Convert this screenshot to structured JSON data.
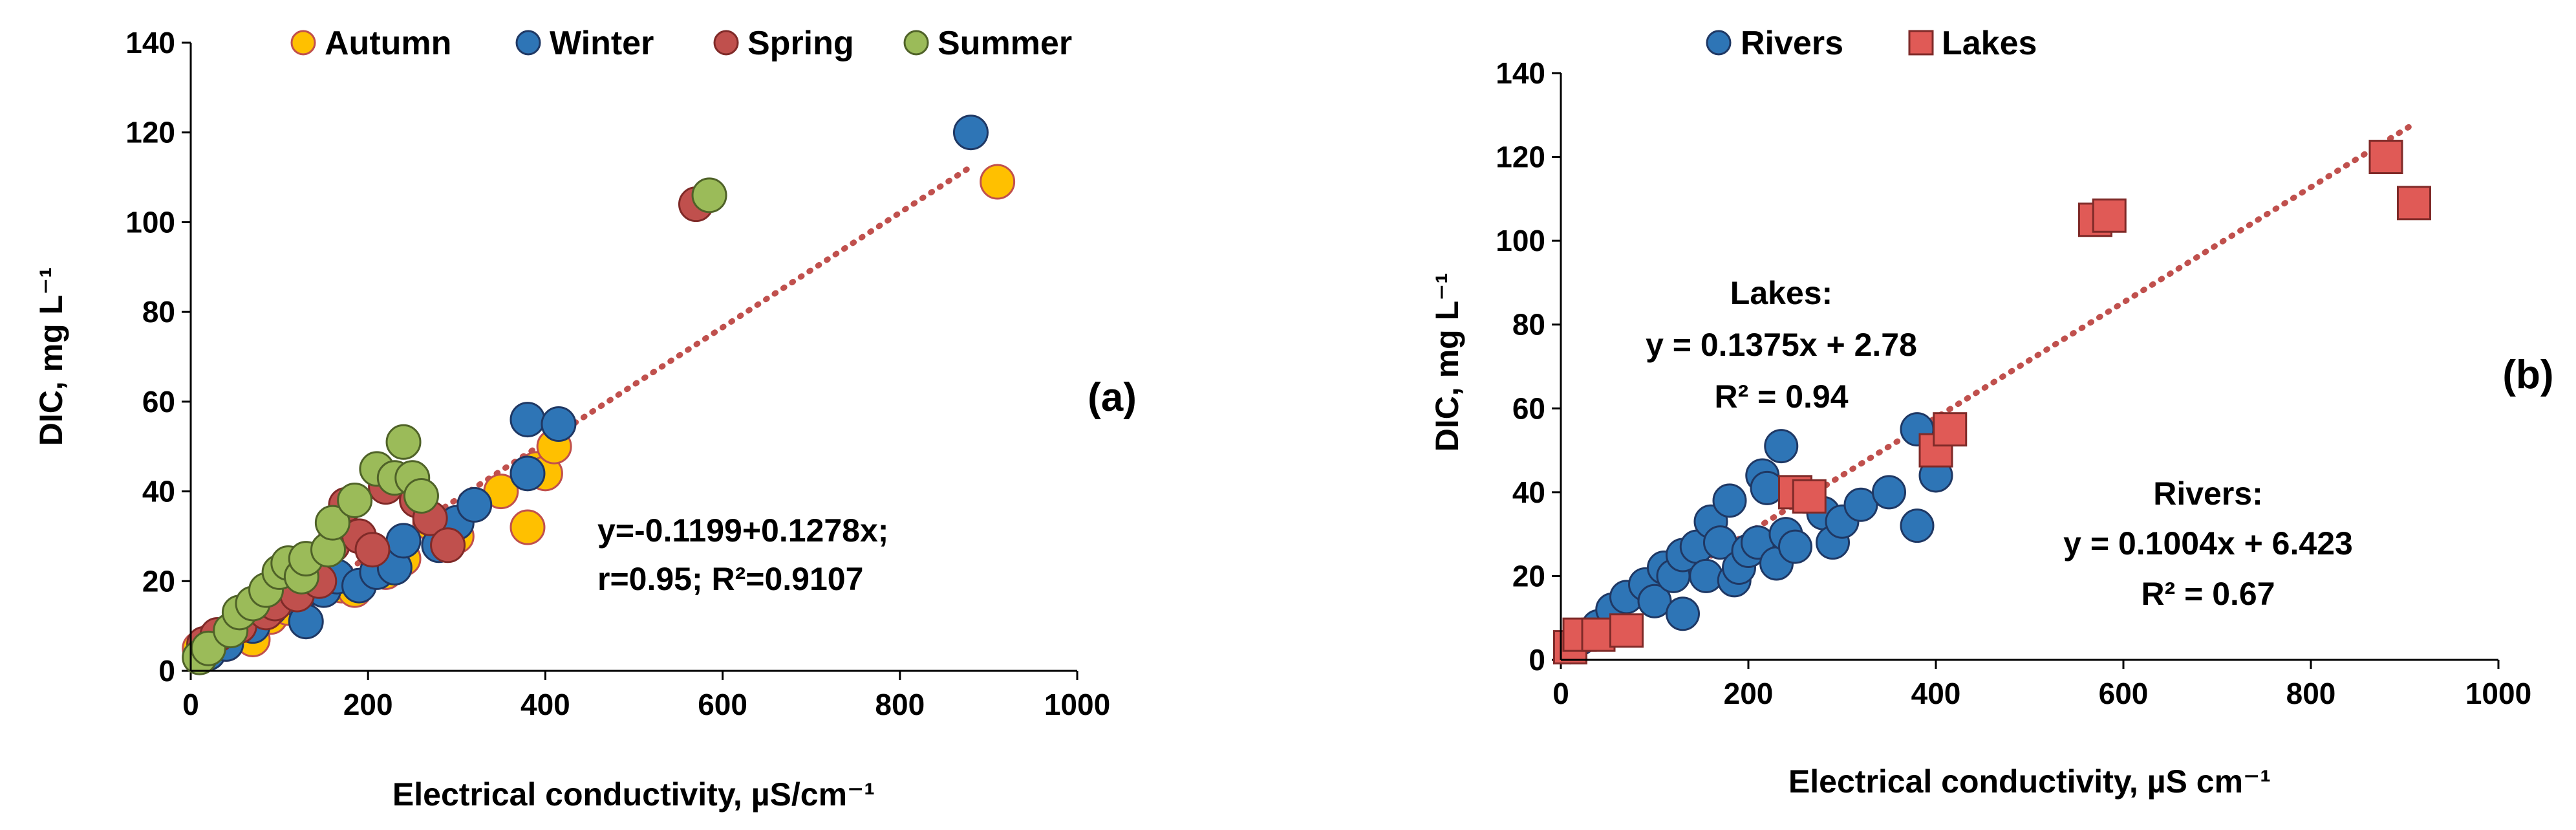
{
  "chart_data": [
    {
      "panel_label": "(a)",
      "type": "scatter",
      "xlabel": "Electrical conductivity, µS/cm⁻¹",
      "ylabel": "DIC, mg L⁻¹",
      "xlim": [
        0,
        1000
      ],
      "ylim": [
        0,
        140
      ],
      "xticks": [
        0,
        200,
        400,
        600,
        800,
        1000
      ],
      "yticks": [
        0,
        20,
        40,
        60,
        80,
        100,
        120,
        140
      ],
      "legend_position": "top",
      "series": [
        {
          "name": "Autumn",
          "marker": "circle",
          "color": "#FFC000",
          "edge": "#C0504D",
          "points": [
            [
              10,
              5
            ],
            [
              25,
              7
            ],
            [
              40,
              6
            ],
            [
              60,
              9
            ],
            [
              70,
              7
            ],
            [
              90,
              12
            ],
            [
              110,
              14
            ],
            [
              130,
              18
            ],
            [
              150,
              20
            ],
            [
              170,
              19
            ],
            [
              185,
              18
            ],
            [
              220,
              22
            ],
            [
              240,
              25
            ],
            [
              270,
              33
            ],
            [
              300,
              30
            ],
            [
              350,
              40
            ],
            [
              380,
              32
            ],
            [
              390,
              45
            ],
            [
              400,
              44
            ],
            [
              410,
              50
            ],
            [
              910,
              109
            ]
          ]
        },
        {
          "name": "Winter",
          "marker": "circle",
          "color": "#2E75B6",
          "edge": "#1F3864",
          "points": [
            [
              20,
              4
            ],
            [
              40,
              6
            ],
            [
              70,
              10
            ],
            [
              90,
              14
            ],
            [
              120,
              16
            ],
            [
              130,
              11
            ],
            [
              150,
              18
            ],
            [
              165,
              21
            ],
            [
              190,
              19
            ],
            [
              210,
              22
            ],
            [
              230,
              23
            ],
            [
              240,
              29
            ],
            [
              280,
              28
            ],
            [
              300,
              33
            ],
            [
              320,
              37
            ],
            [
              380,
              44
            ],
            [
              380,
              56
            ],
            [
              415,
              55
            ],
            [
              880,
              120
            ]
          ]
        },
        {
          "name": "Spring",
          "marker": "circle",
          "color": "#C0504D",
          "edge": "#7F2A28",
          "points": [
            [
              15,
              6
            ],
            [
              30,
              8
            ],
            [
              55,
              10
            ],
            [
              85,
              13
            ],
            [
              95,
              15
            ],
            [
              120,
              17
            ],
            [
              145,
              20
            ],
            [
              160,
              28
            ],
            [
              175,
              37
            ],
            [
              190,
              30
            ],
            [
              205,
              27
            ],
            [
              220,
              41
            ],
            [
              250,
              42
            ],
            [
              255,
              38
            ],
            [
              270,
              34
            ],
            [
              290,
              28
            ],
            [
              570,
              104
            ]
          ]
        },
        {
          "name": "Summer",
          "marker": "circle",
          "color": "#9BBB59",
          "edge": "#4F6228",
          "points": [
            [
              10,
              3
            ],
            [
              20,
              5
            ],
            [
              45,
              9
            ],
            [
              55,
              13
            ],
            [
              70,
              15
            ],
            [
              85,
              18
            ],
            [
              100,
              22
            ],
            [
              110,
              24
            ],
            [
              125,
              21
            ],
            [
              130,
              25
            ],
            [
              155,
              27
            ],
            [
              160,
              33
            ],
            [
              185,
              38
            ],
            [
              210,
              45
            ],
            [
              230,
              43
            ],
            [
              240,
              51
            ],
            [
              250,
              43
            ],
            [
              260,
              39
            ],
            [
              585,
              106
            ]
          ]
        }
      ],
      "trendline": {
        "style": "dotted",
        "color": "#C0504D",
        "x": [
          100,
          880
        ],
        "slope": 0.1278,
        "intercept": -0.1199
      },
      "annotations": [
        {
          "lines": [
            "y=-0.1199+0.1278x;",
            "r=0.95; R²=0.9107"
          ]
        }
      ]
    },
    {
      "panel_label": "(b)",
      "type": "scatter",
      "xlabel": "Electrical conductivity, µS cm⁻¹",
      "ylabel": "DIC, mg L⁻¹",
      "xlim": [
        0,
        1000
      ],
      "ylim": [
        0,
        140
      ],
      "xticks": [
        0,
        200,
        400,
        600,
        800,
        1000
      ],
      "yticks": [
        0,
        20,
        40,
        60,
        80,
        100,
        120,
        140
      ],
      "legend_position": "top",
      "series": [
        {
          "name": "Rivers",
          "marker": "circle",
          "color": "#2E75B6",
          "edge": "#1F3864",
          "points": [
            [
              10,
              3
            ],
            [
              20,
              5
            ],
            [
              40,
              8
            ],
            [
              55,
              12
            ],
            [
              70,
              15
            ],
            [
              90,
              18
            ],
            [
              100,
              14
            ],
            [
              110,
              22
            ],
            [
              120,
              20
            ],
            [
              130,
              25
            ],
            [
              130,
              11
            ],
            [
              145,
              27
            ],
            [
              155,
              20
            ],
            [
              160,
              33
            ],
            [
              170,
              28
            ],
            [
              180,
              38
            ],
            [
              185,
              19
            ],
            [
              190,
              22
            ],
            [
              200,
              26
            ],
            [
              210,
              28
            ],
            [
              215,
              44
            ],
            [
              220,
              41
            ],
            [
              230,
              23
            ],
            [
              235,
              51
            ],
            [
              240,
              30
            ],
            [
              250,
              27
            ],
            [
              260,
              39
            ],
            [
              280,
              35
            ],
            [
              290,
              28
            ],
            [
              300,
              33
            ],
            [
              320,
              37
            ],
            [
              350,
              40
            ],
            [
              380,
              32
            ],
            [
              380,
              55
            ],
            [
              400,
              44
            ]
          ]
        },
        {
          "name": "Lakes",
          "marker": "square",
          "color": "#E05A56",
          "edge": "#7F2A28",
          "points": [
            [
              10,
              3
            ],
            [
              20,
              6
            ],
            [
              40,
              6
            ],
            [
              70,
              7
            ],
            [
              250,
              40
            ],
            [
              265,
              39
            ],
            [
              400,
              50
            ],
            [
              415,
              55
            ],
            [
              570,
              105
            ],
            [
              585,
              106
            ],
            [
              880,
              120
            ],
            [
              910,
              109
            ]
          ]
        }
      ],
      "trendline": {
        "style": "dotted",
        "color": "#C0504D",
        "x": [
          10,
          910
        ],
        "slope": 0.1375,
        "intercept": 2.78
      },
      "annotations": [
        {
          "lines": [
            "Lakes:",
            "y = 0.1375x + 2.78",
            "R² = 0.94"
          ]
        },
        {
          "lines": [
            "Rivers:",
            "y = 0.1004x + 6.423",
            "R² = 0.67"
          ]
        }
      ]
    }
  ]
}
